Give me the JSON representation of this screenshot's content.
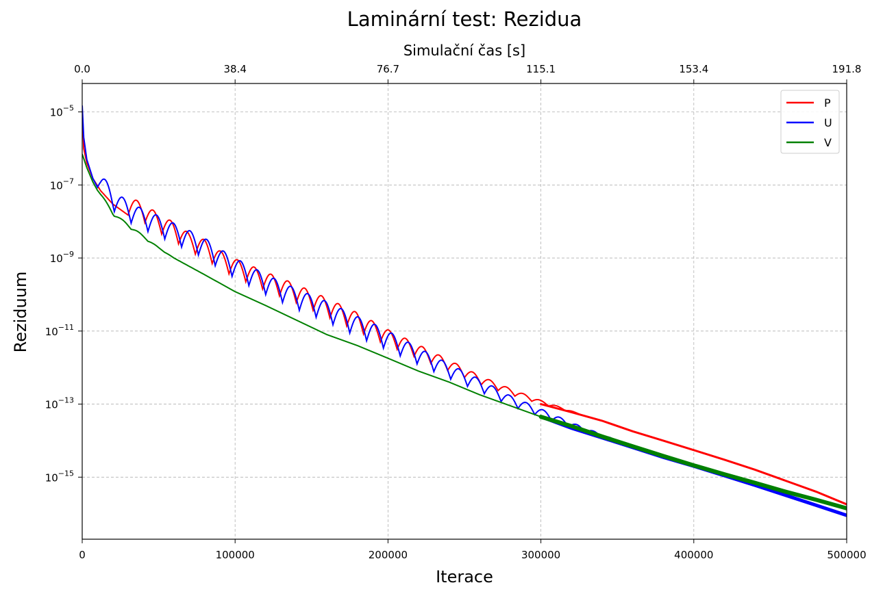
{
  "chart_data": {
    "type": "line",
    "title": "Laminární test: Rezidua",
    "xlabel": "Iterace",
    "ylabel": "Reziduum",
    "x2label": "Simulační čas [s]",
    "xlim": [
      0,
      500000
    ],
    "x_ticks": [
      0,
      100000,
      200000,
      300000,
      400000,
      500000
    ],
    "x_tick_labels": [
      "0",
      "100000",
      "200000",
      "300000",
      "400000",
      "500000"
    ],
    "x2_ticks": [
      0,
      100000,
      200000,
      300000,
      400000,
      500000
    ],
    "x2_tick_labels": [
      "0.0",
      "38.4",
      "76.7",
      "115.1",
      "153.4",
      "191.8"
    ],
    "yscale": "log",
    "ylim": [
      2e-17,
      6e-05
    ],
    "y_ticks": [
      1e-05,
      1e-07,
      1e-09,
      1e-11,
      1e-13,
      1e-15
    ],
    "y_tick_labels": [
      {
        "base": "10",
        "exp": "−5"
      },
      {
        "base": "10",
        "exp": "−7"
      },
      {
        "base": "10",
        "exp": "−9"
      },
      {
        "base": "10",
        "exp": "−11"
      },
      {
        "base": "10",
        "exp": "−13"
      },
      {
        "base": "10",
        "exp": "−15"
      }
    ],
    "grid": true,
    "legend_position": "top-right",
    "series": [
      {
        "name": "P",
        "color": "#ff0000",
        "points": [
          [
            0,
            1e-05
          ],
          [
            1000,
            1e-06
          ],
          [
            3000,
            4e-07
          ],
          [
            7000,
            1.5e-07
          ],
          [
            12000,
            7e-08
          ],
          [
            20000,
            3e-08
          ],
          [
            30000,
            1.5e-08
          ],
          [
            40000,
            1e-08
          ],
          [
            50000,
            5e-09
          ],
          [
            60000,
            3e-09
          ],
          [
            70000,
            1.5e-09
          ],
          [
            80000,
            1e-09
          ],
          [
            90000,
            5e-10
          ],
          [
            100000,
            3e-10
          ],
          [
            120000,
            1.3e-10
          ],
          [
            140000,
            6e-11
          ],
          [
            160000,
            2.5e-11
          ],
          [
            180000,
            1e-11
          ],
          [
            200000,
            4e-12
          ],
          [
            220000,
            1.8e-12
          ],
          [
            240000,
            8e-13
          ],
          [
            260000,
            3.5e-13
          ],
          [
            280000,
            1.8e-13
          ],
          [
            300000,
            1e-13
          ],
          [
            320000,
            6e-14
          ],
          [
            340000,
            3.5e-14
          ],
          [
            360000,
            1.8e-14
          ],
          [
            380000,
            1e-14
          ],
          [
            400000,
            5.5e-15
          ],
          [
            420000,
            3e-15
          ],
          [
            440000,
            1.6e-15
          ],
          [
            460000,
            8e-16
          ],
          [
            480000,
            4e-16
          ],
          [
            500000,
            1.8e-16
          ]
        ],
        "oscillation": {
          "period": 11000,
          "amplitude": 0.5,
          "from": 30000,
          "to": 330000
        }
      },
      {
        "name": "U",
        "color": "#0000ff",
        "points": [
          [
            0,
            1.5e-05
          ],
          [
            1000,
            2e-06
          ],
          [
            3000,
            5e-07
          ],
          [
            7000,
            1.5e-07
          ],
          [
            12000,
            6e-08
          ],
          [
            20000,
            2e-08
          ],
          [
            30000,
            1e-08
          ],
          [
            40000,
            6e-09
          ],
          [
            50000,
            4e-09
          ],
          [
            60000,
            2.5e-09
          ],
          [
            70000,
            1.6e-09
          ],
          [
            80000,
            1e-09
          ],
          [
            90000,
            5e-10
          ],
          [
            100000,
            2.8e-10
          ],
          [
            120000,
            1e-10
          ],
          [
            140000,
            4e-11
          ],
          [
            160000,
            1.8e-11
          ],
          [
            180000,
            7e-12
          ],
          [
            200000,
            3e-12
          ],
          [
            220000,
            1.2e-12
          ],
          [
            240000,
            5e-13
          ],
          [
            260000,
            2.2e-13
          ],
          [
            280000,
            9e-14
          ],
          [
            300000,
            4.5e-14
          ],
          [
            320000,
            2.2e-14
          ],
          [
            340000,
            1.2e-14
          ],
          [
            360000,
            6.5e-15
          ],
          [
            380000,
            3.5e-15
          ],
          [
            400000,
            2e-15
          ],
          [
            420000,
            1.1e-15
          ],
          [
            440000,
            6e-16
          ],
          [
            460000,
            3.2e-16
          ],
          [
            480000,
            1.7e-16
          ],
          [
            500000,
            9e-17
          ]
        ],
        "oscillation": {
          "period": 11000,
          "amplitude": 0.55,
          "from": 10000,
          "to": 370000
        }
      },
      {
        "name": "V",
        "color": "#008000",
        "points": [
          [
            0,
            7e-07
          ],
          [
            3000,
            3e-07
          ],
          [
            7000,
            1.2e-07
          ],
          [
            12000,
            5e-08
          ],
          [
            20000,
            1.5e-08
          ],
          [
            30000,
            7e-09
          ],
          [
            40000,
            3.5e-09
          ],
          [
            50000,
            1.8e-09
          ],
          [
            60000,
            1e-09
          ],
          [
            80000,
            3.5e-10
          ],
          [
            100000,
            1.2e-10
          ],
          [
            120000,
            5e-11
          ],
          [
            140000,
            2e-11
          ],
          [
            160000,
            8e-12
          ],
          [
            180000,
            4e-12
          ],
          [
            200000,
            1.8e-12
          ],
          [
            220000,
            8e-13
          ],
          [
            240000,
            4e-13
          ],
          [
            260000,
            1.8e-13
          ],
          [
            280000,
            9e-14
          ],
          [
            300000,
            4.5e-14
          ],
          [
            320000,
            2.5e-14
          ],
          [
            340000,
            1.3e-14
          ],
          [
            360000,
            7e-15
          ],
          [
            380000,
            3.8e-15
          ],
          [
            400000,
            2.1e-15
          ],
          [
            420000,
            1.2e-15
          ],
          [
            440000,
            7e-16
          ],
          [
            460000,
            4e-16
          ],
          [
            480000,
            2.4e-16
          ],
          [
            500000,
            1.4e-16
          ]
        ],
        "oscillation": {
          "period": 11000,
          "amplitude": 0.08,
          "from": 10000,
          "to": 60000
        }
      }
    ]
  }
}
